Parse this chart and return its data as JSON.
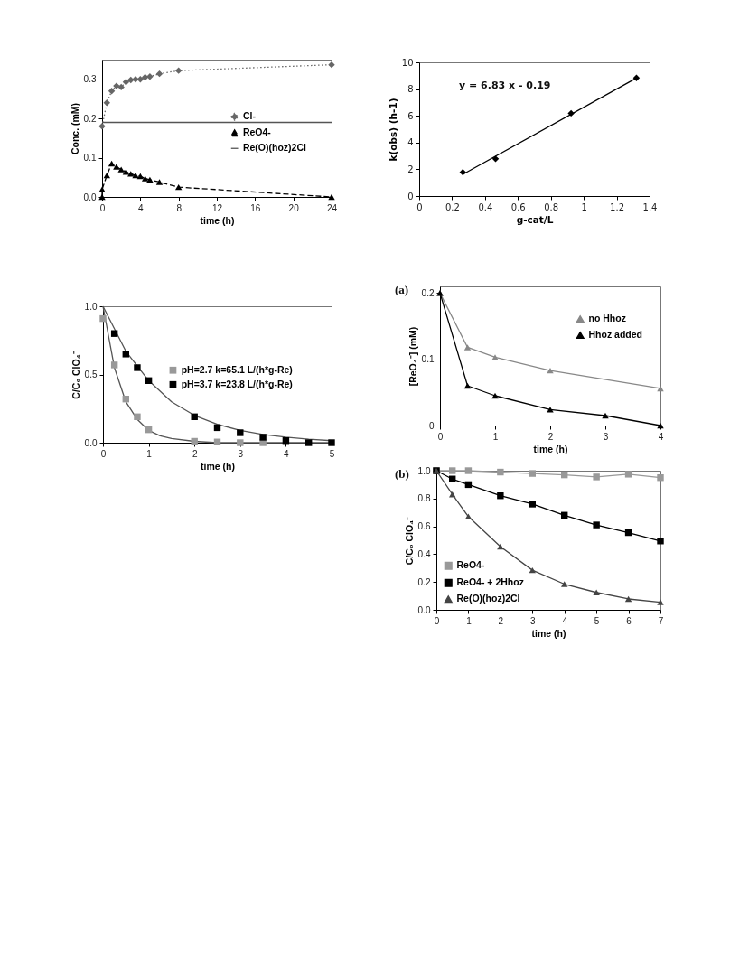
{
  "chart_data": [
    {
      "type": "line",
      "xlabel": "time (h)",
      "ylabel": "Conc. (mM)",
      "xlim": [
        0,
        24
      ],
      "xticks": [
        0,
        4,
        8,
        12,
        16,
        20,
        24
      ],
      "ylim": [
        0,
        0.35
      ],
      "yticks": [
        {
          "value": 0,
          "label": "0.0"
        },
        {
          "value": 0.1,
          "label": "0.1"
        },
        {
          "value": 0.2,
          "label": "0.2"
        },
        {
          "value": 0.3,
          "label": "0.3"
        }
      ],
      "legend": "right",
      "series": [
        {
          "name": "Cl-",
          "color": "#666666",
          "marker": "diamond",
          "line_style": "dotted",
          "x": [
            0,
            0.5,
            1,
            1.5,
            2,
            2.5,
            3,
            3.5,
            4,
            4.5,
            5,
            6,
            8,
            24
          ],
          "values": [
            0.18,
            0.24,
            0.27,
            0.283,
            0.28,
            0.293,
            0.298,
            0.3,
            0.3,
            0.305,
            0.307,
            0.314,
            0.322,
            0.337
          ]
        },
        {
          "name": "ReO4-",
          "color": "#000000",
          "marker": "triangle",
          "line_style": "dashed",
          "x": [
            0,
            0,
            0.5,
            1,
            1.5,
            2,
            2.5,
            3,
            3.5,
            4,
            4.5,
            5,
            6,
            8,
            24
          ],
          "values": [
            0,
            0.019,
            0.055,
            0.085,
            0.077,
            0.07,
            0.064,
            0.059,
            0.055,
            0.053,
            0.047,
            0.044,
            0.038,
            0.025,
            0
          ]
        },
        {
          "name": "Re(O)(hoz)2Cl",
          "color": "#555555",
          "marker": "none",
          "line_style": "solid",
          "x": [
            0,
            24
          ],
          "values": [
            0.19,
            0.19
          ]
        }
      ]
    },
    {
      "type": "scatter",
      "xlabel": "g-cat/L",
      "ylabel": "k(obs) (h-1)",
      "xlim": [
        0,
        1.4
      ],
      "xticks": [
        0,
        0.2,
        0.4,
        0.6,
        0.8,
        1,
        1.2,
        1.4
      ],
      "ylim": [
        0,
        10
      ],
      "yticks": [
        0,
        2,
        4,
        6,
        8,
        10
      ],
      "annotations": [
        "y = 6.83 x - 0.19"
      ],
      "series": [
        {
          "color": "#000000",
          "marker": "diamond",
          "x": [
            0.265,
            0.464,
            0.923,
            1.32
          ],
          "values": [
            1.78,
            2.78,
            6.19,
            8.83
          ]
        },
        {
          "type": "line",
          "color": "#000000",
          "marker": "none",
          "x": [
            0.265,
            1.32
          ],
          "values": [
            1.62,
            8.83
          ]
        }
      ]
    },
    {
      "type": "scatter",
      "xlabel": "time (h)",
      "ylabel": "C/C₀ ClO₄⁻",
      "xlim": [
        0,
        5
      ],
      "xticks": [
        0,
        1,
        2,
        3,
        4,
        5
      ],
      "ylim": [
        0,
        1
      ],
      "yticks": [
        {
          "value": 0,
          "label": "0.0"
        },
        {
          "value": 0.5,
          "label": "0.5"
        },
        {
          "value": 1,
          "label": "1.0"
        }
      ],
      "legend": "right",
      "series": [
        {
          "type": "line",
          "color": "#555555",
          "marker": "none",
          "x": [
            0,
            0.25,
            0.5,
            0.75,
            1,
            1.25,
            1.5,
            2,
            2.5,
            3,
            4,
            5
          ],
          "values": [
            1,
            0.55,
            0.3,
            0.17,
            0.09,
            0.05,
            0.03,
            0.01,
            0,
            0,
            0,
            0
          ]
        },
        {
          "type": "line",
          "color": "#555555",
          "marker": "none",
          "x": [
            0,
            0.5,
            1,
            1.5,
            2,
            2.5,
            3,
            3.5,
            4,
            4.5,
            5
          ],
          "values": [
            1,
            0.67,
            0.455,
            0.3,
            0.2,
            0.135,
            0.09,
            0.06,
            0.04,
            0.025,
            0.015
          ]
        },
        {
          "name": "pH=2.7 k=65.1 L/(h*g-Re)",
          "color": "#999999",
          "marker": "square",
          "x": [
            0,
            0.25,
            0.5,
            0.75,
            1,
            2,
            2.5,
            3,
            3.5
          ],
          "values": [
            0.91,
            0.57,
            0.32,
            0.19,
            0.095,
            0.01,
            0.005,
            0,
            0
          ]
        },
        {
          "name": "pH=3.7 k=23.8 L/(h*g-Re)",
          "color": "#000000",
          "marker": "square",
          "x": [
            0.25,
            0.5,
            0.75,
            1,
            2,
            2.5,
            3,
            3.5,
            4,
            4.5,
            5
          ],
          "values": [
            0.8,
            0.65,
            0.55,
            0.455,
            0.19,
            0.11,
            0.073,
            0.04,
            0.015,
            0,
            0
          ]
        }
      ]
    },
    {
      "type": "line",
      "xlabel": "time (h)",
      "ylabel": "[ReO₄⁻] (mM)",
      "xlim": [
        0,
        4
      ],
      "xticks": [
        0,
        1,
        2,
        3,
        4
      ],
      "ylim": [
        0,
        0.21
      ],
      "yticks": [
        0,
        0.1,
        0.2
      ],
      "legend": "top right",
      "annotations": [
        "(a)"
      ],
      "series": [
        {
          "name": "no Hhoz",
          "color": "#888888",
          "marker": "triangle",
          "line_style": "solid",
          "x": [
            0,
            0.5,
            1,
            2,
            4
          ],
          "values": [
            0.2,
            0.118,
            0.103,
            0.083,
            0.056
          ]
        },
        {
          "name": "Hhoz added",
          "color": "#000000",
          "marker": "triangle",
          "line_style": "solid",
          "x": [
            0,
            0.5,
            1,
            2,
            3,
            4
          ],
          "values": [
            0.2,
            0.06,
            0.045,
            0.024,
            0.015,
            0
          ]
        }
      ]
    },
    {
      "type": "line",
      "xlabel": "time (h)",
      "ylabel": "C/C₀ ClO₄⁻",
      "xlim": [
        0,
        7
      ],
      "xticks": [
        0,
        1,
        2,
        3,
        4,
        5,
        6,
        7
      ],
      "ylim": [
        0,
        1
      ],
      "yticks": [
        {
          "value": 0,
          "label": "0.0"
        },
        {
          "value": 0.2,
          "label": "0.2"
        },
        {
          "value": 0.4,
          "label": "0.4"
        },
        {
          "value": 0.6,
          "label": "0.6"
        },
        {
          "value": 0.8,
          "label": "0.8"
        },
        {
          "value": 1,
          "label": "1.0"
        }
      ],
      "legend": "bottom left",
      "annotations": [
        "(b)"
      ],
      "series": [
        {
          "name": "ReO4-",
          "color": "#999999",
          "marker": "square",
          "line_style": "solid",
          "x": [
            0,
            0.5,
            1,
            2,
            3,
            4,
            5,
            6,
            7
          ],
          "values": [
            1,
            1,
            1,
            0.99,
            0.98,
            0.97,
            0.955,
            0.975,
            0.95
          ]
        },
        {
          "name": "ReO4- + 2Hhoz",
          "color": "#000000",
          "marker": "square",
          "line_style": "solid",
          "x": [
            0,
            0.5,
            1,
            2,
            3,
            4,
            5,
            6,
            7
          ],
          "values": [
            1,
            0.94,
            0.9,
            0.82,
            0.76,
            0.68,
            0.61,
            0.555,
            0.495
          ]
        },
        {
          "name": "Re(O)(hoz)2Cl",
          "color": "#444444",
          "marker": "triangle",
          "line_style": "solid",
          "x": [
            0,
            0.5,
            1,
            2,
            3,
            4,
            5,
            6,
            7
          ],
          "values": [
            1,
            0.83,
            0.67,
            0.455,
            0.285,
            0.185,
            0.125,
            0.078,
            0.055
          ]
        }
      ]
    }
  ]
}
